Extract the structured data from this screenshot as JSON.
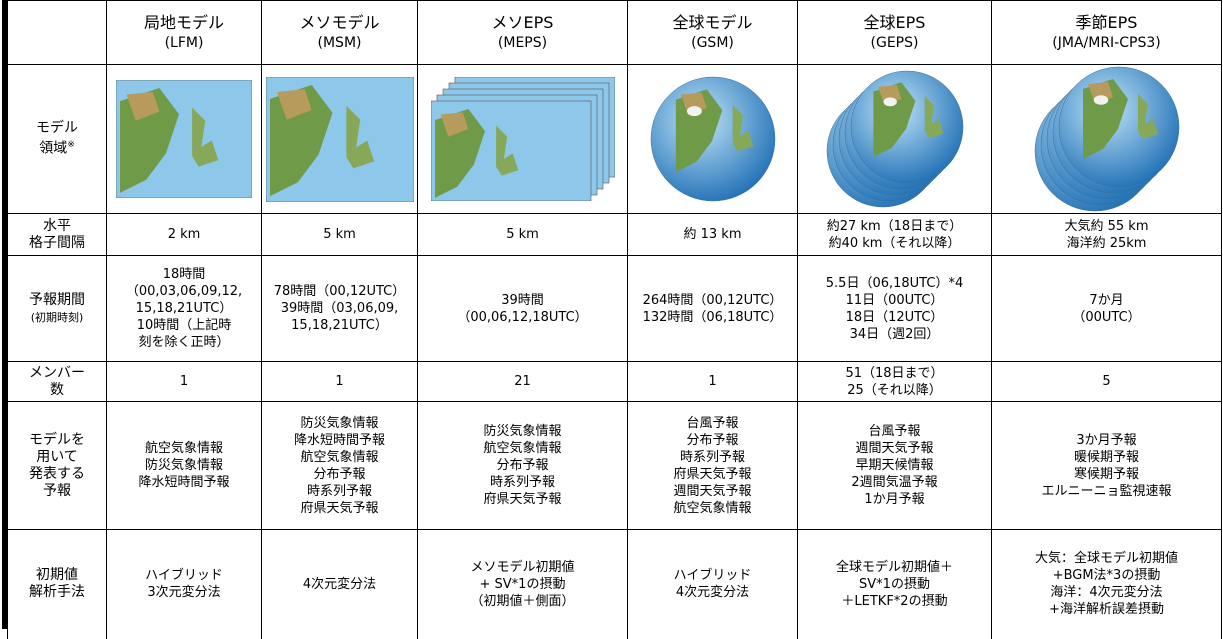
{
  "table": {
    "columns": [
      {
        "name": "局地モデル",
        "abbr": "(LFM)"
      },
      {
        "name": "メソモデル",
        "abbr": "(MSM)"
      },
      {
        "name": "メソEPS",
        "abbr": "(MEPS)"
      },
      {
        "name": "全球モデル",
        "abbr": "(GSM)"
      },
      {
        "name": "全球EPS",
        "abbr": "(GEPS)"
      },
      {
        "name": "季節EPS",
        "abbr": "(JMA/MRI-CPS3)"
      }
    ],
    "image_row": {
      "label": [
        "モデル",
        "領域"
      ],
      "note": "※"
    },
    "rows": [
      {
        "label": [
          "水平",
          "格子間隔"
        ],
        "cells": [
          [
            "2 km"
          ],
          [
            "5 km"
          ],
          [
            "5 km"
          ],
          [
            "約 13 km"
          ],
          [
            "約27 km（18日まで）",
            "約40 km（それ以降）"
          ],
          [
            "大気約 55 km",
            "海洋約 25km"
          ]
        ]
      },
      {
        "label": [
          "予報期間"
        ],
        "sublabel": "(初期時刻)",
        "cells": [
          [
            "18時間",
            "（00,03,06,09,12,",
            "15,18,21UTC）",
            "10時間（上記時",
            "刻を除く正時）"
          ],
          [
            "78時間（00,12UTC）",
            "39時間（03,06,09,",
            "15,18,21UTC）"
          ],
          [
            "39時間",
            "（00,06,12,18UTC）"
          ],
          [
            "264時間（00,12UTC）",
            "132時間（06,18UTC）"
          ],
          [
            "5.5日（06,18UTC）*4",
            "11日（00UTC）",
            "18日（12UTC）",
            "34日（週2回）"
          ],
          [
            "7か月",
            "（00UTC）"
          ]
        ]
      },
      {
        "label": [
          "メンバー",
          "数"
        ],
        "cells": [
          [
            "1"
          ],
          [
            "1"
          ],
          [
            "21"
          ],
          [
            "1"
          ],
          [
            "51（18日まで）",
            "25（それ以降）"
          ],
          [
            "5"
          ]
        ]
      },
      {
        "label": [
          "モデルを",
          "用いて",
          "発表する",
          "予報"
        ],
        "cells": [
          [
            "航空気象情報",
            "防災気象情報",
            "降水短時間予報"
          ],
          [
            "防災気象情報",
            "降水短時間予報",
            "航空気象情報",
            "分布予報",
            "時系列予報",
            "府県天気予報"
          ],
          [
            "防災気象情報",
            "航空気象情報",
            "分布予報",
            "時系列予報",
            "府県天気予報"
          ],
          [
            "台風予報",
            "分布予報",
            "時系列予報",
            "府県天気予報",
            "週間天気予報",
            "航空気象情報"
          ],
          [
            "台風予報",
            "週間天気予報",
            "早期天候情報",
            "2週間気温予報",
            "1か月予報"
          ],
          [
            "3か月予報",
            "暖候期予報",
            "寒候期予報",
            "エルニーニョ監視速報"
          ]
        ]
      },
      {
        "label": [
          "初期値",
          "解析手法"
        ],
        "cells": [
          [
            "ハイブリッド",
            "3次元変分法"
          ],
          [
            "4次元変分法"
          ],
          [
            "メソモデル初期値",
            "+ SV*1の摂動",
            "（初期値＋側面）"
          ],
          [
            "ハイブリッド",
            "4次元変分法"
          ],
          [
            "全球モデル初期値＋",
            "SV*1の摂動",
            "＋LETKF*2の摂動"
          ],
          [
            "大気：全球モデル初期値",
            "+BGM法*3の摂動",
            "海洋：4次元変分法",
            "+海洋解析誤差摂動"
          ]
        ]
      }
    ]
  }
}
